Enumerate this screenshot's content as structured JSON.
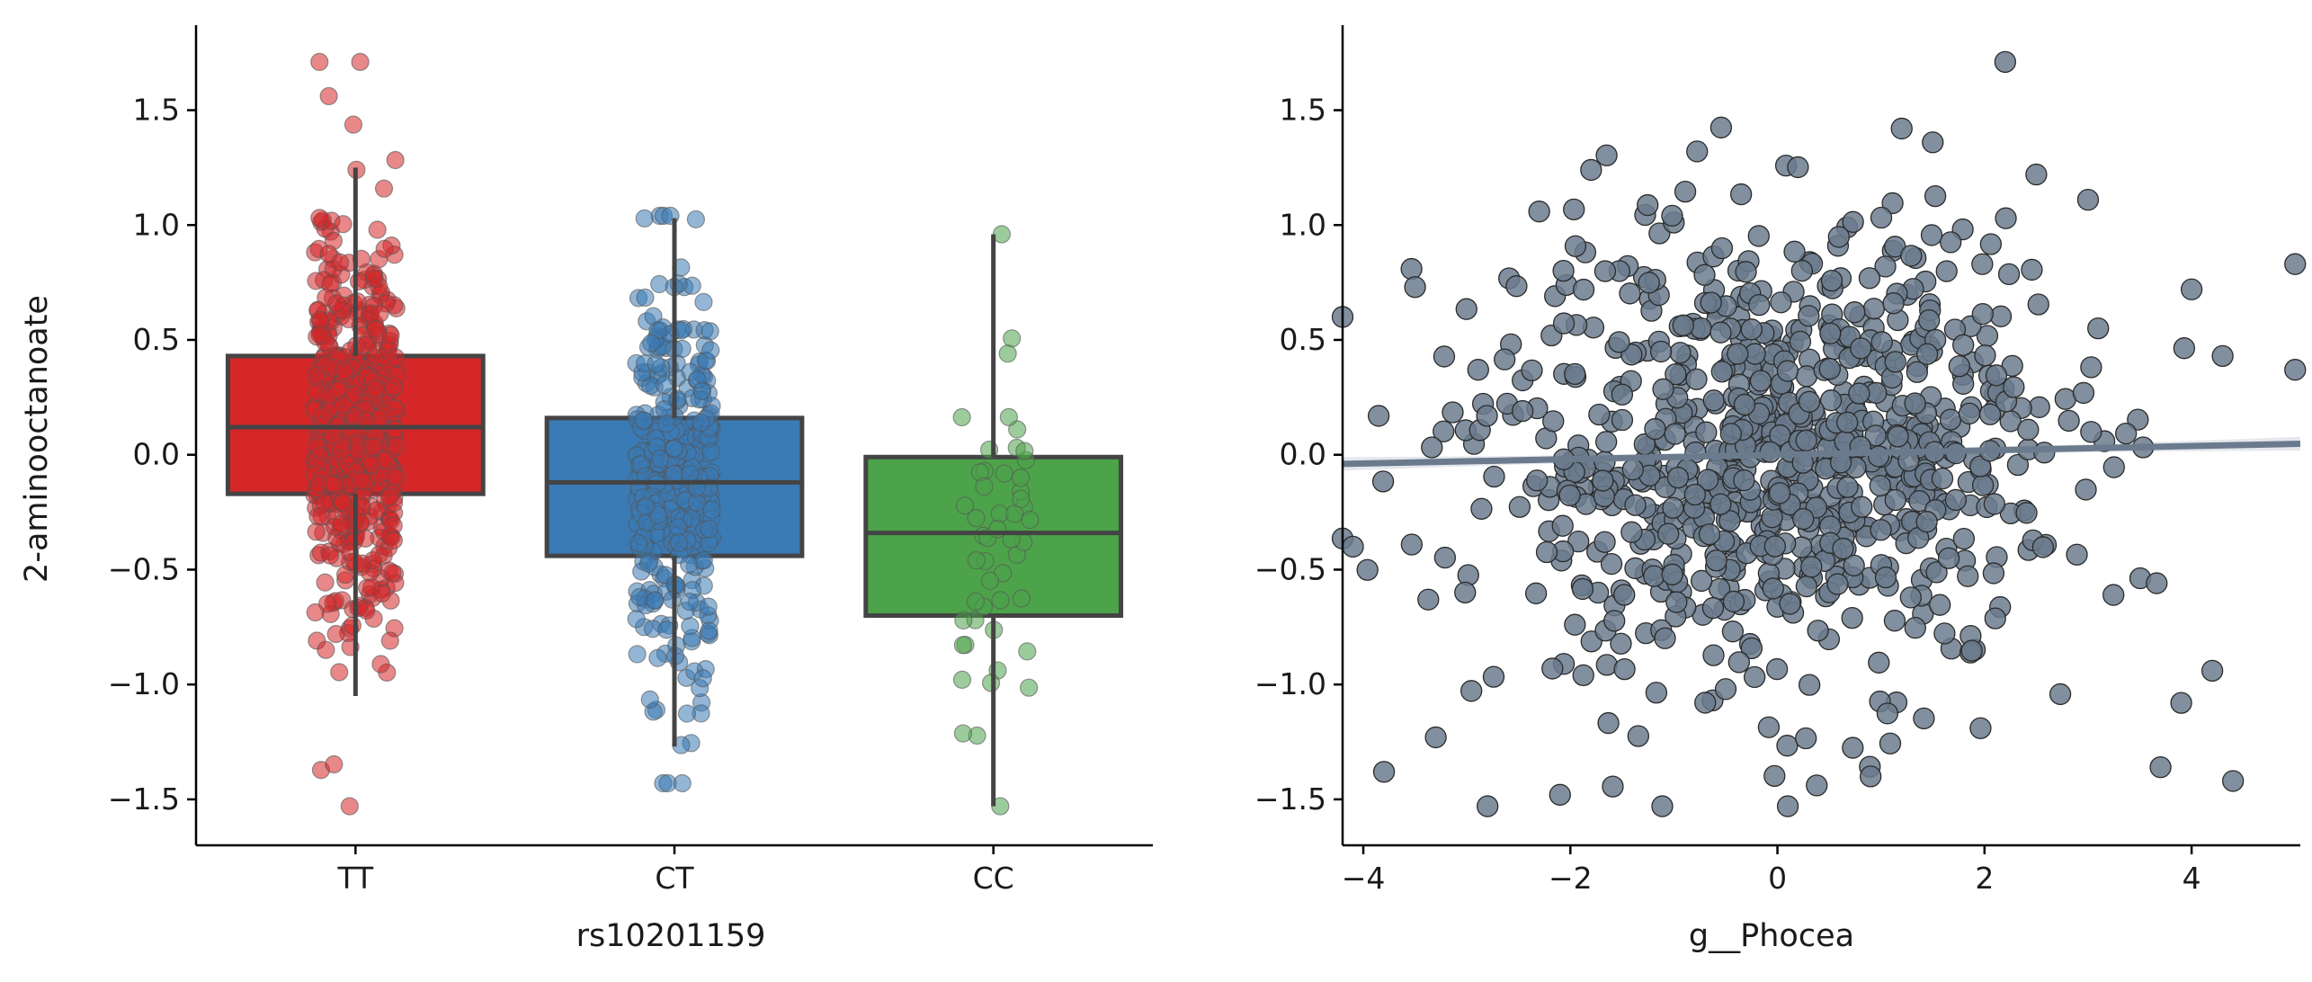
{
  "figure": {
    "panels": [
      "box-strip",
      "scatter-regression"
    ]
  },
  "chart_data": [
    {
      "type": "box",
      "title": "",
      "xlabel": "rs10201159",
      "ylabel": "2-aminooctanoate",
      "ylim": [
        -1.7,
        1.87
      ],
      "yticks": [
        -1.5,
        -1.0,
        -0.5,
        0.0,
        0.5,
        1.0,
        1.5
      ],
      "ytick_labels": [
        "−1.5",
        "−1.0",
        "−0.5",
        "0.0",
        "0.5",
        "1.0",
        "1.5"
      ],
      "grid": false,
      "categories": [
        "TT",
        "CT",
        "CC"
      ],
      "colors": [
        "#d62728",
        "#3a7ab5",
        "#4da34a"
      ],
      "edge_color": "#444444",
      "boxes": [
        {
          "category": "TT",
          "q1": -0.17,
          "median": 0.12,
          "q3": 0.43,
          "whisker_low": -1.05,
          "whisker_high": 1.25
        },
        {
          "category": "CT",
          "q1": -0.44,
          "median": -0.12,
          "q3": 0.16,
          "whisker_low": -1.27,
          "whisker_high": 1.03
        },
        {
          "category": "CC",
          "q1": -0.7,
          "median": -0.34,
          "q3": -0.01,
          "whisker_low": -1.53,
          "whisker_high": 0.96
        }
      ],
      "points": [
        {
          "category": "TT",
          "n": 500,
          "mean": 0.12,
          "sd": 0.44,
          "min": -1.53,
          "max": 1.71,
          "jitter": 0.13
        },
        {
          "category": "CT",
          "n": 320,
          "mean": -0.12,
          "sd": 0.45,
          "min": -1.43,
          "max": 1.04,
          "jitter": 0.12
        },
        {
          "category": "CC",
          "n": 48,
          "mean": -0.35,
          "sd": 0.5,
          "min": -1.53,
          "max": 0.96,
          "jitter": 0.12
        }
      ]
    },
    {
      "type": "scatter",
      "title": "",
      "xlabel": "g__Phocea",
      "ylabel": "",
      "xlim": [
        -4.2,
        5.05
      ],
      "ylim": [
        -1.7,
        1.87
      ],
      "xticks": [
        -4,
        -2,
        0,
        2,
        4
      ],
      "xtick_labels": [
        "−4",
        "−2",
        "0",
        "2",
        "4"
      ],
      "yticks": [
        -1.5,
        -1.0,
        -0.5,
        0.0,
        0.5,
        1.0,
        1.5
      ],
      "ytick_labels": [
        "−1.5",
        "−1.0",
        "−0.5",
        "0.0",
        "0.5",
        "1.0",
        "1.5"
      ],
      "grid": false,
      "point_color": "#6b7b8d",
      "point_edge_color": "#2b2b2b",
      "n_points": 850,
      "x_mean": 0.0,
      "x_sd": 1.35,
      "y_mean": 0.0,
      "y_sd": 0.48,
      "regression": {
        "slope": 0.0095,
        "intercept": 0.0,
        "line_color": "#6b7b8d",
        "ci_color": "#dfe4ea",
        "ci_half_width_center": 0.012,
        "ci_half_width_edge": 0.03
      },
      "highlight_points": [
        {
          "x": 2.2,
          "y": 1.71
        },
        {
          "x": 0.1,
          "y": -1.53
        },
        {
          "x": -2.8,
          "y": -1.53
        },
        {
          "x": -1.8,
          "y": 1.24
        },
        {
          "x": 1.5,
          "y": 1.36
        },
        {
          "x": -4.2,
          "y": 0.6
        },
        {
          "x": 5.0,
          "y": 0.83
        },
        {
          "x": 5.0,
          "y": 0.37
        },
        {
          "x": 4.4,
          "y": -1.42
        },
        {
          "x": -3.8,
          "y": -1.38
        },
        {
          "x": -2.1,
          "y": -1.48
        },
        {
          "x": 3.9,
          "y": -1.08
        },
        {
          "x": 4.2,
          "y": -0.94
        },
        {
          "x": -4.1,
          "y": -0.4
        },
        {
          "x": 1.2,
          "y": 1.42
        },
        {
          "x": 2.5,
          "y": 1.22
        },
        {
          "x": 3.0,
          "y": 1.11
        },
        {
          "x": -0.5,
          "y": -1.02
        },
        {
          "x": 0.9,
          "y": -1.4
        },
        {
          "x": -3.3,
          "y": -1.23
        },
        {
          "x": 4.0,
          "y": 0.72
        },
        {
          "x": 4.3,
          "y": 0.43
        },
        {
          "x": -3.5,
          "y": 0.73
        },
        {
          "x": 3.7,
          "y": -1.36
        }
      ]
    }
  ]
}
